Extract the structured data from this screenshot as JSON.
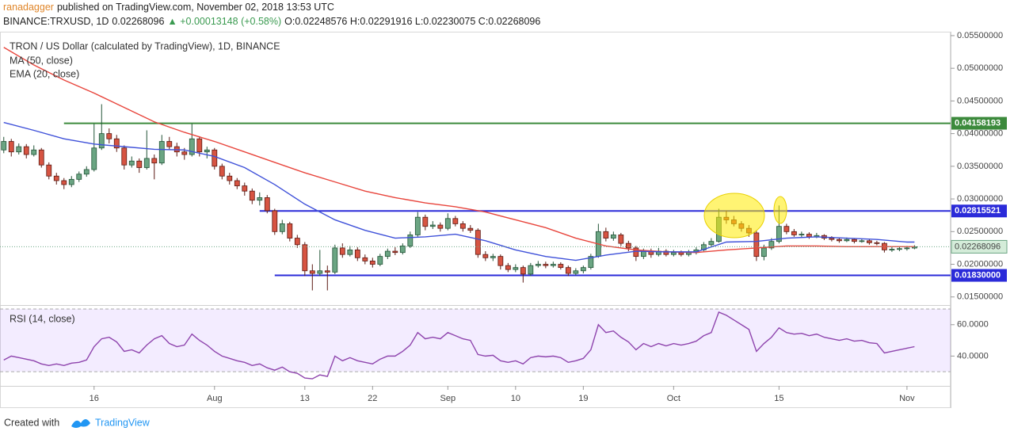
{
  "header": {
    "author": "ranadagger",
    "published": "published on TradingView.com, November 02, 2018 13:53 UTC",
    "symbol": "BINANCE:TRXUSD, 1D",
    "last": "0.02268096",
    "change": "▲ +0.00013148 (+0.58%)",
    "ohlc": "O:0.02248576 H:0.02291916 L:0.02230075 C:0.02268096"
  },
  "footer": {
    "created": "Created with",
    "brand": "TradingView"
  },
  "chart_data": {
    "type": "candlestick",
    "title": "TRON / US Dollar (calculated by TradingView), 1D, BINANCE",
    "up_color": "#6ba583",
    "down_color": "#d75442",
    "ohlc": [
      [
        0.0375,
        0.0395,
        0.037,
        0.0388
      ],
      [
        0.0388,
        0.0392,
        0.0365,
        0.0372
      ],
      [
        0.0372,
        0.0385,
        0.0368,
        0.038
      ],
      [
        0.038,
        0.0384,
        0.0362,
        0.0368
      ],
      [
        0.0368,
        0.0382,
        0.0365,
        0.0375
      ],
      [
        0.0375,
        0.0378,
        0.0348,
        0.0352
      ],
      [
        0.0352,
        0.0356,
        0.033,
        0.0335
      ],
      [
        0.0335,
        0.034,
        0.0322,
        0.0328
      ],
      [
        0.0328,
        0.0332,
        0.0315,
        0.0322
      ],
      [
        0.0322,
        0.0335,
        0.0318,
        0.033
      ],
      [
        0.033,
        0.0342,
        0.0326,
        0.0338
      ],
      [
        0.0338,
        0.035,
        0.0334,
        0.0345
      ],
      [
        0.0345,
        0.0415,
        0.0342,
        0.0378
      ],
      [
        0.0378,
        0.0445,
        0.0375,
        0.04
      ],
      [
        0.04,
        0.0408,
        0.0385,
        0.0392
      ],
      [
        0.0392,
        0.0398,
        0.0372,
        0.0378
      ],
      [
        0.0378,
        0.0382,
        0.0345,
        0.0352
      ],
      [
        0.0352,
        0.0365,
        0.0348,
        0.0358
      ],
      [
        0.0358,
        0.0362,
        0.034,
        0.0348
      ],
      [
        0.0348,
        0.0405,
        0.0345,
        0.0362
      ],
      [
        0.0362,
        0.0368,
        0.033,
        0.0355
      ],
      [
        0.0355,
        0.0398,
        0.0352,
        0.0388
      ],
      [
        0.0388,
        0.0395,
        0.0375,
        0.038
      ],
      [
        0.038,
        0.0386,
        0.0365,
        0.0372
      ],
      [
        0.0372,
        0.0378,
        0.036,
        0.0368
      ],
      [
        0.0368,
        0.0415,
        0.0365,
        0.0392
      ],
      [
        0.0392,
        0.0396,
        0.0365,
        0.0372
      ],
      [
        0.0372,
        0.038,
        0.0362,
        0.0375
      ],
      [
        0.0375,
        0.0378,
        0.0345,
        0.035
      ],
      [
        0.035,
        0.0354,
        0.033,
        0.0335
      ],
      [
        0.0335,
        0.034,
        0.0322,
        0.0328
      ],
      [
        0.0328,
        0.0332,
        0.0315,
        0.032
      ],
      [
        0.032,
        0.0325,
        0.0305,
        0.0312
      ],
      [
        0.0312,
        0.0316,
        0.0292,
        0.0298
      ],
      [
        0.0298,
        0.031,
        0.029,
        0.0302
      ],
      [
        0.0302,
        0.0306,
        0.0278,
        0.0282
      ],
      [
        0.0282,
        0.0285,
        0.0245,
        0.025
      ],
      [
        0.025,
        0.0268,
        0.0246,
        0.0262
      ],
      [
        0.0262,
        0.0265,
        0.0235,
        0.024
      ],
      [
        0.024,
        0.0245,
        0.0225,
        0.023
      ],
      [
        0.023,
        0.0234,
        0.0182,
        0.019
      ],
      [
        0.019,
        0.02,
        0.016,
        0.0186
      ],
      [
        0.0186,
        0.0222,
        0.0182,
        0.019
      ],
      [
        0.019,
        0.0198,
        0.016,
        0.0188
      ],
      [
        0.0188,
        0.023,
        0.0185,
        0.0225
      ],
      [
        0.0225,
        0.0232,
        0.021,
        0.0215
      ],
      [
        0.0215,
        0.0228,
        0.0212,
        0.0222
      ],
      [
        0.0222,
        0.0226,
        0.0205,
        0.021
      ],
      [
        0.021,
        0.0215,
        0.02,
        0.0205
      ],
      [
        0.0205,
        0.021,
        0.0195,
        0.02
      ],
      [
        0.02,
        0.0216,
        0.0197,
        0.0212
      ],
      [
        0.0212,
        0.0224,
        0.0208,
        0.022
      ],
      [
        0.022,
        0.0226,
        0.0214,
        0.0218
      ],
      [
        0.0218,
        0.0232,
        0.0215,
        0.0228
      ],
      [
        0.0228,
        0.025,
        0.0225,
        0.0245
      ],
      [
        0.0245,
        0.028,
        0.0242,
        0.0272
      ],
      [
        0.0272,
        0.0276,
        0.0252,
        0.0258
      ],
      [
        0.0258,
        0.0266,
        0.0254,
        0.026
      ],
      [
        0.026,
        0.0264,
        0.025,
        0.0255
      ],
      [
        0.0255,
        0.0278,
        0.0252,
        0.027
      ],
      [
        0.027,
        0.0274,
        0.0258,
        0.0262
      ],
      [
        0.0262,
        0.0266,
        0.025,
        0.0255
      ],
      [
        0.0255,
        0.026,
        0.0248,
        0.0252
      ],
      [
        0.0252,
        0.0255,
        0.021,
        0.0215
      ],
      [
        0.0215,
        0.022,
        0.0205,
        0.021
      ],
      [
        0.021,
        0.0216,
        0.0205,
        0.0212
      ],
      [
        0.0212,
        0.0215,
        0.0192,
        0.0198
      ],
      [
        0.0198,
        0.0202,
        0.0188,
        0.0192
      ],
      [
        0.0192,
        0.02,
        0.0188,
        0.0195
      ],
      [
        0.0195,
        0.0198,
        0.0172,
        0.0185
      ],
      [
        0.0185,
        0.0202,
        0.0182,
        0.0198
      ],
      [
        0.0198,
        0.0205,
        0.0195,
        0.02
      ],
      [
        0.02,
        0.0204,
        0.0194,
        0.0198
      ],
      [
        0.0198,
        0.0204,
        0.0195,
        0.02
      ],
      [
        0.02,
        0.0203,
        0.0192,
        0.0195
      ],
      [
        0.0195,
        0.0198,
        0.0182,
        0.0186
      ],
      [
        0.0186,
        0.0194,
        0.0183,
        0.019
      ],
      [
        0.019,
        0.0198,
        0.0186,
        0.0195
      ],
      [
        0.0195,
        0.0216,
        0.0192,
        0.0212
      ],
      [
        0.0212,
        0.0262,
        0.021,
        0.025
      ],
      [
        0.025,
        0.0256,
        0.0235,
        0.024
      ],
      [
        0.024,
        0.025,
        0.0236,
        0.0245
      ],
      [
        0.0245,
        0.0248,
        0.0228,
        0.0232
      ],
      [
        0.0232,
        0.0236,
        0.022,
        0.0225
      ],
      [
        0.0225,
        0.0228,
        0.0205,
        0.0212
      ],
      [
        0.0212,
        0.0224,
        0.0208,
        0.022
      ],
      [
        0.022,
        0.0224,
        0.021,
        0.0215
      ],
      [
        0.0215,
        0.0225,
        0.0212,
        0.022
      ],
      [
        0.022,
        0.0223,
        0.0212,
        0.0215
      ],
      [
        0.0215,
        0.0222,
        0.0212,
        0.0218
      ],
      [
        0.0218,
        0.0221,
        0.0212,
        0.0215
      ],
      [
        0.0215,
        0.0222,
        0.0212,
        0.0218
      ],
      [
        0.0218,
        0.0226,
        0.0215,
        0.0222
      ],
      [
        0.0222,
        0.0234,
        0.022,
        0.023
      ],
      [
        0.023,
        0.024,
        0.0227,
        0.0235
      ],
      [
        0.0235,
        0.0285,
        0.0233,
        0.0272
      ],
      [
        0.0272,
        0.0282,
        0.0262,
        0.0268
      ],
      [
        0.0268,
        0.0274,
        0.0258,
        0.0262
      ],
      [
        0.0262,
        0.0266,
        0.025,
        0.0255
      ],
      [
        0.0255,
        0.026,
        0.0242,
        0.0248
      ],
      [
        0.0248,
        0.0252,
        0.0205,
        0.0212
      ],
      [
        0.0212,
        0.023,
        0.0206,
        0.0225
      ],
      [
        0.0225,
        0.024,
        0.0222,
        0.0235
      ],
      [
        0.0235,
        0.029,
        0.0232,
        0.0258
      ],
      [
        0.0258,
        0.0262,
        0.0246,
        0.025
      ],
      [
        0.025,
        0.0254,
        0.0242,
        0.0245
      ],
      [
        0.0245,
        0.025,
        0.0241,
        0.0246
      ],
      [
        0.0246,
        0.0249,
        0.0239,
        0.0242
      ],
      [
        0.0242,
        0.0248,
        0.024,
        0.0244
      ],
      [
        0.0244,
        0.0246,
        0.0237,
        0.024
      ],
      [
        0.024,
        0.0243,
        0.0235,
        0.0238
      ],
      [
        0.0238,
        0.0241,
        0.0233,
        0.0236
      ],
      [
        0.0236,
        0.0241,
        0.0234,
        0.0238
      ],
      [
        0.0238,
        0.024,
        0.0232,
        0.0235
      ],
      [
        0.0235,
        0.0239,
        0.0233,
        0.0236
      ],
      [
        0.0236,
        0.0238,
        0.023,
        0.0233
      ],
      [
        0.0233,
        0.0236,
        0.0229,
        0.0232
      ],
      [
        0.0232,
        0.0234,
        0.0218,
        0.0222
      ],
      [
        0.0222,
        0.0227,
        0.0219,
        0.0223
      ],
      [
        0.0223,
        0.0227,
        0.022,
        0.0224
      ],
      [
        0.0224,
        0.0228,
        0.0221,
        0.0225
      ],
      [
        0.02248576,
        0.02291916,
        0.02230075,
        0.02268096
      ]
    ],
    "xlim": [
      -0.5,
      125.8
    ],
    "xticks": [
      {
        "value": 12,
        "label": "16"
      },
      {
        "value": 28,
        "label": "Aug"
      },
      {
        "value": 40,
        "label": "13"
      },
      {
        "value": 49,
        "label": "22"
      },
      {
        "value": 59,
        "label": "Sep"
      },
      {
        "value": 68,
        "label": "10"
      },
      {
        "value": 77,
        "label": "19"
      },
      {
        "value": 89,
        "label": "Oct"
      },
      {
        "value": 103,
        "label": "15"
      },
      {
        "value": 120,
        "label": "Nov"
      }
    ],
    "ylim": [
      0.014,
      0.0556
    ],
    "yticks": [
      {
        "value": 0.015,
        "label": "0.01500000"
      },
      {
        "value": 0.02,
        "label": "0.02000000"
      },
      {
        "value": 0.025,
        "label": "0.02500000"
      },
      {
        "value": 0.03,
        "label": "0.03000000"
      },
      {
        "value": 0.035,
        "label": "0.03500000"
      },
      {
        "value": 0.04,
        "label": "0.04000000"
      },
      {
        "value": 0.045,
        "label": "0.04500000"
      },
      {
        "value": 0.05,
        "label": "0.05000000"
      },
      {
        "value": 0.055,
        "label": "0.05500000"
      }
    ],
    "series": [
      {
        "name": "MA (50, close)",
        "color": "#e8453c",
        "x": [
          0,
          4,
          8,
          12,
          16,
          20,
          24,
          28,
          32,
          36,
          40,
          44,
          48,
          52,
          56,
          60,
          64,
          68,
          72,
          76,
          80,
          84,
          88,
          92,
          96,
          100,
          104,
          108,
          112,
          116,
          120,
          121
        ],
        "values": [
          0.0532,
          0.0505,
          0.0482,
          0.0462,
          0.044,
          0.0418,
          0.0402,
          0.0388,
          0.0372,
          0.0356,
          0.034,
          0.0326,
          0.0312,
          0.0302,
          0.0294,
          0.0288,
          0.028,
          0.0268,
          0.0256,
          0.024,
          0.0228,
          0.0222,
          0.0219,
          0.0218,
          0.0222,
          0.0225,
          0.0228,
          0.0228,
          0.0227,
          0.0227,
          0.0227,
          0.0227
        ]
      },
      {
        "name": "EMA (20, close)",
        "color": "#3f51d9",
        "x": [
          0,
          4,
          8,
          12,
          16,
          20,
          24,
          28,
          32,
          36,
          40,
          44,
          48,
          52,
          56,
          60,
          64,
          68,
          72,
          76,
          80,
          84,
          88,
          92,
          96,
          100,
          104,
          108,
          112,
          116,
          120,
          121
        ],
        "values": [
          0.0417,
          0.0405,
          0.0392,
          0.0384,
          0.038,
          0.0376,
          0.0375,
          0.0365,
          0.0348,
          0.0322,
          0.0292,
          0.0268,
          0.0252,
          0.024,
          0.0242,
          0.0246,
          0.0236,
          0.0222,
          0.0212,
          0.0206,
          0.0214,
          0.022,
          0.0219,
          0.0219,
          0.0234,
          0.0235,
          0.024,
          0.0242,
          0.024,
          0.0238,
          0.0234,
          0.0234
        ]
      }
    ],
    "levels": [
      {
        "value": 0.04158193,
        "from": 8,
        "color": "#3c8a3c"
      },
      {
        "value": 0.02815521,
        "from": 34,
        "color": "#2b2bd9"
      },
      {
        "value": 0.0183,
        "label": "0.01830000",
        "from": 36,
        "color": "#2b2bd9"
      }
    ],
    "rsi": {
      "name": "RSI (14, close)",
      "color": "#8e44ad",
      "values": [
        37.5,
        40,
        39,
        38,
        37,
        35,
        34,
        35,
        34,
        35.5,
        36,
        37.5,
        46,
        51,
        52,
        49,
        43,
        44,
        42,
        47,
        51,
        53,
        48,
        46,
        47,
        54,
        50,
        47,
        43,
        40,
        38.5,
        37,
        36,
        34,
        35,
        32.5,
        31,
        33,
        30,
        29,
        26,
        25.5,
        28,
        27,
        40,
        37,
        39,
        37,
        36,
        35,
        38,
        40,
        40,
        43,
        47,
        55,
        51,
        52,
        51,
        55,
        53,
        51,
        50,
        41,
        40,
        40.5,
        37,
        36,
        37,
        35,
        39,
        40,
        39.5,
        40,
        39,
        36,
        37,
        38.5,
        44,
        60,
        55,
        56,
        52,
        49,
        44,
        48,
        46,
        48,
        46.5,
        48,
        47,
        48,
        49.5,
        53,
        55,
        68,
        66,
        63,
        60,
        57,
        43,
        48,
        52,
        58,
        55,
        54,
        54.5,
        53,
        54,
        52,
        51,
        50,
        51,
        49.5,
        50,
        48.5,
        48,
        42,
        43,
        44,
        45,
        46
      ],
      "ylim": [
        21,
        71
      ],
      "yticks": [
        {
          "value": 40,
          "label": "40.0000"
        },
        {
          "value": 60,
          "label": "60.0000"
        }
      ],
      "band": [
        30,
        70
      ]
    }
  }
}
